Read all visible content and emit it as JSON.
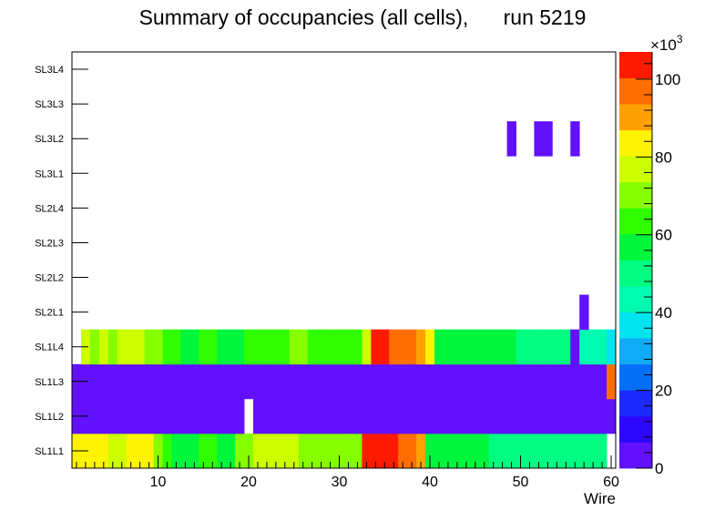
{
  "chart_data": {
    "type": "heatmap",
    "title": "Summary of occupancies (all cells),      run 5219",
    "xlabel": "Wire",
    "ylabel": "",
    "xlim": [
      0.5,
      60.5
    ],
    "x_ticks": [
      10,
      20,
      30,
      40,
      50,
      60
    ],
    "y_categories": [
      "SL1L1",
      "SL1L2",
      "SL1L3",
      "SL1L4",
      "SL2L1",
      "SL2L2",
      "SL2L3",
      "SL2L4",
      "SL3L1",
      "SL3L2",
      "SL3L3",
      "SL3L4"
    ],
    "z_range": [
      0,
      107000
    ],
    "z_ticks": [
      0,
      20,
      40,
      60,
      80,
      100
    ],
    "z_multiplier": "×10",
    "z_multiplier_exp": "3",
    "colors": [
      "#6111fb",
      "#2e07fe",
      "#1c2afe",
      "#066ff8",
      "#11aaf4",
      "#00e4ef",
      "#00fab0",
      "#00fc81",
      "#00f63c",
      "#30fd00",
      "#86fe00",
      "#ccfe00",
      "#fef303",
      "#fea100",
      "#fe6e00",
      "#fe1a00"
    ],
    "rows": [
      {
        "layer": "SL1L1",
        "values": [
          86000,
          86000,
          86000,
          86000,
          75000,
          75000,
          86000,
          86000,
          86000,
          70000,
          65000,
          60000,
          60000,
          60000,
          65000,
          65000,
          60000,
          60000,
          70000,
          70000,
          75000,
          75000,
          75000,
          75000,
          75000,
          70000,
          70000,
          70000,
          70000,
          70000,
          70000,
          70000,
          105000,
          105000,
          105000,
          105000,
          100000,
          95000,
          90000,
          60000,
          60000,
          60000,
          60000,
          55000,
          55000,
          55000,
          50000,
          50000,
          50000,
          50000,
          50000,
          50000,
          50000,
          50000,
          50000,
          50000,
          50000,
          50000,
          50000,
          0
        ]
      },
      {
        "layer": "SL1L2",
        "values": [
          3000,
          3000,
          3000,
          3000,
          3000,
          3000,
          3000,
          3000,
          3000,
          3000,
          3000,
          3000,
          3000,
          3000,
          3000,
          3000,
          3000,
          3000,
          3000,
          0,
          3000,
          3000,
          3000,
          3000,
          3000,
          3000,
          3000,
          3000,
          3000,
          3000,
          3000,
          3000,
          3000,
          3000,
          3000,
          3000,
          3000,
          3000,
          3000,
          3000,
          3000,
          3000,
          3000,
          3000,
          3000,
          3000,
          3000,
          3000,
          3000,
          3000,
          3000,
          3000,
          3000,
          3000,
          3000,
          3000,
          3000,
          3000,
          3000,
          3000
        ]
      },
      {
        "layer": "SL1L3",
        "values": [
          3000,
          3000,
          3000,
          3000,
          3000,
          3000,
          3000,
          3000,
          3000,
          3000,
          3000,
          3000,
          3000,
          3000,
          3000,
          3000,
          3000,
          3000,
          3000,
          3000,
          3000,
          3000,
          3000,
          3000,
          3000,
          3000,
          3000,
          3000,
          3000,
          3000,
          3000,
          3000,
          3000,
          3000,
          3000,
          3000,
          3000,
          3000,
          3000,
          3000,
          3000,
          3000,
          3000,
          3000,
          3000,
          3000,
          3000,
          3000,
          3000,
          3000,
          3000,
          3000,
          3000,
          3000,
          3000,
          3000,
          3000,
          3000,
          3000,
          95000
        ]
      },
      {
        "layer": "SL1L4",
        "values": [
          0,
          75000,
          70000,
          75000,
          70000,
          75000,
          75000,
          75000,
          70000,
          70000,
          65000,
          65000,
          60000,
          60000,
          65000,
          65000,
          60000,
          60000,
          60000,
          65000,
          65000,
          65000,
          65000,
          65000,
          70000,
          70000,
          65000,
          65000,
          65000,
          65000,
          65000,
          65000,
          75000,
          105000,
          105000,
          100000,
          100000,
          95000,
          90000,
          85000,
          60000,
          60000,
          60000,
          60000,
          60000,
          55000,
          55000,
          55000,
          55000,
          50000,
          50000,
          50000,
          50000,
          50000,
          50000,
          3000,
          45000,
          45000,
          45000,
          40000
        ]
      },
      {
        "layer": "SL2L1",
        "values": [
          0,
          0,
          0,
          0,
          0,
          0,
          0,
          0,
          0,
          0,
          0,
          0,
          0,
          0,
          0,
          0,
          0,
          0,
          0,
          0,
          0,
          0,
          0,
          0,
          0,
          0,
          0,
          0,
          0,
          0,
          0,
          0,
          0,
          0,
          0,
          0,
          0,
          0,
          0,
          0,
          0,
          0,
          0,
          0,
          0,
          0,
          0,
          0,
          0,
          0,
          0,
          0,
          0,
          0,
          0,
          0,
          3000,
          0,
          0,
          0
        ]
      },
      {
        "layer": "SL2L2",
        "values": [
          0,
          0,
          0,
          0,
          0,
          0,
          0,
          0,
          0,
          0,
          0,
          0,
          0,
          0,
          0,
          0,
          0,
          0,
          0,
          0,
          0,
          0,
          0,
          0,
          0,
          0,
          0,
          0,
          0,
          0,
          0,
          0,
          0,
          0,
          0,
          0,
          0,
          0,
          0,
          0,
          0,
          0,
          0,
          0,
          0,
          0,
          0,
          0,
          0,
          0,
          0,
          0,
          0,
          0,
          0,
          0,
          0,
          0,
          0,
          0
        ]
      },
      {
        "layer": "SL2L3",
        "values": [
          0,
          0,
          0,
          0,
          0,
          0,
          0,
          0,
          0,
          0,
          0,
          0,
          0,
          0,
          0,
          0,
          0,
          0,
          0,
          0,
          0,
          0,
          0,
          0,
          0,
          0,
          0,
          0,
          0,
          0,
          0,
          0,
          0,
          0,
          0,
          0,
          0,
          0,
          0,
          0,
          0,
          0,
          0,
          0,
          0,
          0,
          0,
          0,
          0,
          0,
          0,
          0,
          0,
          0,
          0,
          0,
          0,
          0,
          0,
          0
        ]
      },
      {
        "layer": "SL2L4",
        "values": [
          0,
          0,
          0,
          0,
          0,
          0,
          0,
          0,
          0,
          0,
          0,
          0,
          0,
          0,
          0,
          0,
          0,
          0,
          0,
          0,
          0,
          0,
          0,
          0,
          0,
          0,
          0,
          0,
          0,
          0,
          0,
          0,
          0,
          0,
          0,
          0,
          0,
          0,
          0,
          0,
          0,
          0,
          0,
          0,
          0,
          0,
          0,
          0,
          0,
          0,
          0,
          0,
          0,
          0,
          0,
          0,
          0,
          0,
          0,
          0
        ]
      },
      {
        "layer": "SL3L1",
        "values": [
          0,
          0,
          0,
          0,
          0,
          0,
          0,
          0,
          0,
          0,
          0,
          0,
          0,
          0,
          0,
          0,
          0,
          0,
          0,
          0,
          0,
          0,
          0,
          0,
          0,
          0,
          0,
          0,
          0,
          0,
          0,
          0,
          0,
          0,
          0,
          0,
          0,
          0,
          0,
          0,
          0,
          0,
          0,
          0,
          0,
          0,
          0,
          0,
          0,
          0,
          0,
          0,
          0,
          0,
          0,
          0,
          0,
          0,
          0,
          0
        ]
      },
      {
        "layer": "SL3L2",
        "values": [
          0,
          0,
          0,
          0,
          0,
          0,
          0,
          0,
          0,
          0,
          0,
          0,
          0,
          0,
          0,
          0,
          0,
          0,
          0,
          0,
          0,
          0,
          0,
          0,
          0,
          0,
          0,
          0,
          0,
          0,
          0,
          0,
          0,
          0,
          0,
          0,
          0,
          0,
          0,
          0,
          0,
          0,
          0,
          0,
          0,
          0,
          0,
          0,
          3000,
          0,
          0,
          3000,
          3000,
          0,
          0,
          3000,
          0,
          0,
          0,
          0
        ]
      },
      {
        "layer": "SL3L3",
        "values": [
          0,
          0,
          0,
          0,
          0,
          0,
          0,
          0,
          0,
          0,
          0,
          0,
          0,
          0,
          0,
          0,
          0,
          0,
          0,
          0,
          0,
          0,
          0,
          0,
          0,
          0,
          0,
          0,
          0,
          0,
          0,
          0,
          0,
          0,
          0,
          0,
          0,
          0,
          0,
          0,
          0,
          0,
          0,
          0,
          0,
          0,
          0,
          0,
          0,
          0,
          0,
          0,
          0,
          0,
          0,
          0,
          0,
          0,
          0,
          0
        ]
      },
      {
        "layer": "SL3L4",
        "values": [
          0,
          0,
          0,
          0,
          0,
          0,
          0,
          0,
          0,
          0,
          0,
          0,
          0,
          0,
          0,
          0,
          0,
          0,
          0,
          0,
          0,
          0,
          0,
          0,
          0,
          0,
          0,
          0,
          0,
          0,
          0,
          0,
          0,
          0,
          0,
          0,
          0,
          0,
          0,
          0,
          0,
          0,
          0,
          0,
          0,
          0,
          0,
          0,
          0,
          0,
          0,
          0,
          0,
          0,
          0,
          0,
          0,
          0,
          0,
          0
        ]
      }
    ]
  }
}
